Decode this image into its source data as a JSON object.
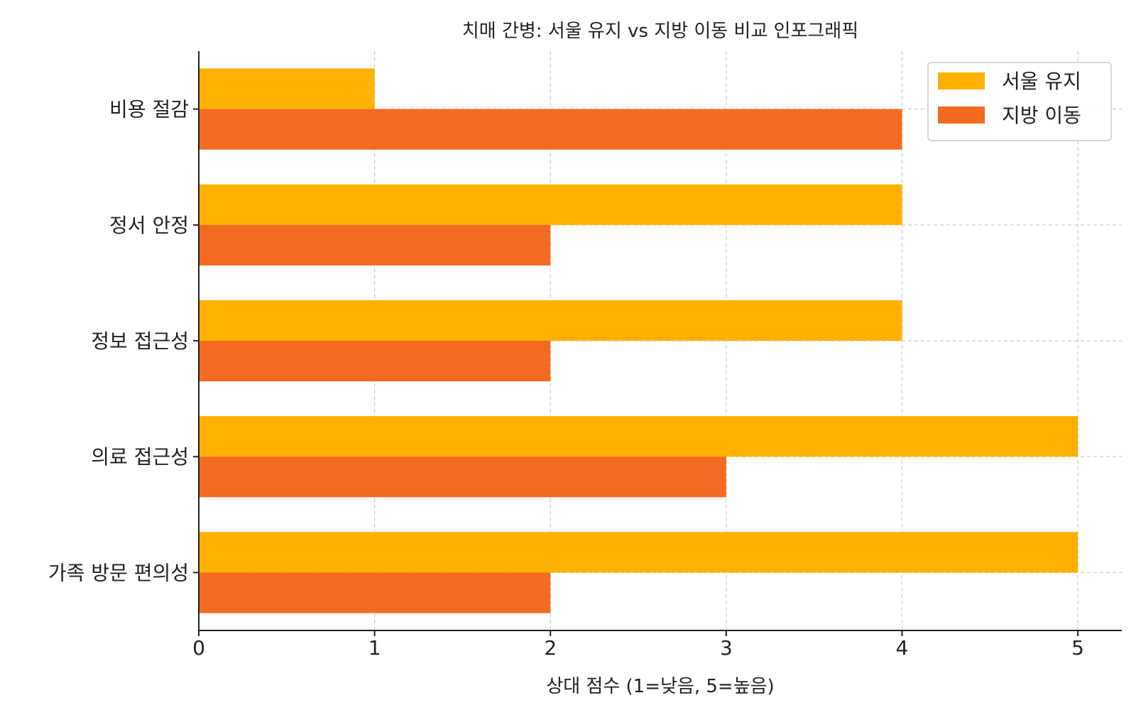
{
  "chart_data": {
    "type": "bar",
    "orientation": "horizontal",
    "title": "치매 간병: 서울 유지 vs 지방 이동 비교 인포그래픽",
    "xlabel": "상대 점수 (1=낮음, 5=높음)",
    "ylabel": "",
    "categories": [
      "비용 절감",
      "정서 안정",
      "정보 접근성",
      "의료 접근성",
      "가족 방문 편의성"
    ],
    "series": [
      {
        "name": "서울 유지",
        "values": [
          1,
          4,
          4,
          5,
          5
        ],
        "color": "#FFB000"
      },
      {
        "name": "지방 이동",
        "values": [
          4,
          2,
          2,
          3,
          2
        ],
        "color": "#F26B21"
      }
    ],
    "xlim": [
      0,
      5.25
    ],
    "xticks": [
      "0",
      "1",
      "2",
      "3",
      "4",
      "5"
    ],
    "grid": true,
    "legend_position": "top-right"
  }
}
